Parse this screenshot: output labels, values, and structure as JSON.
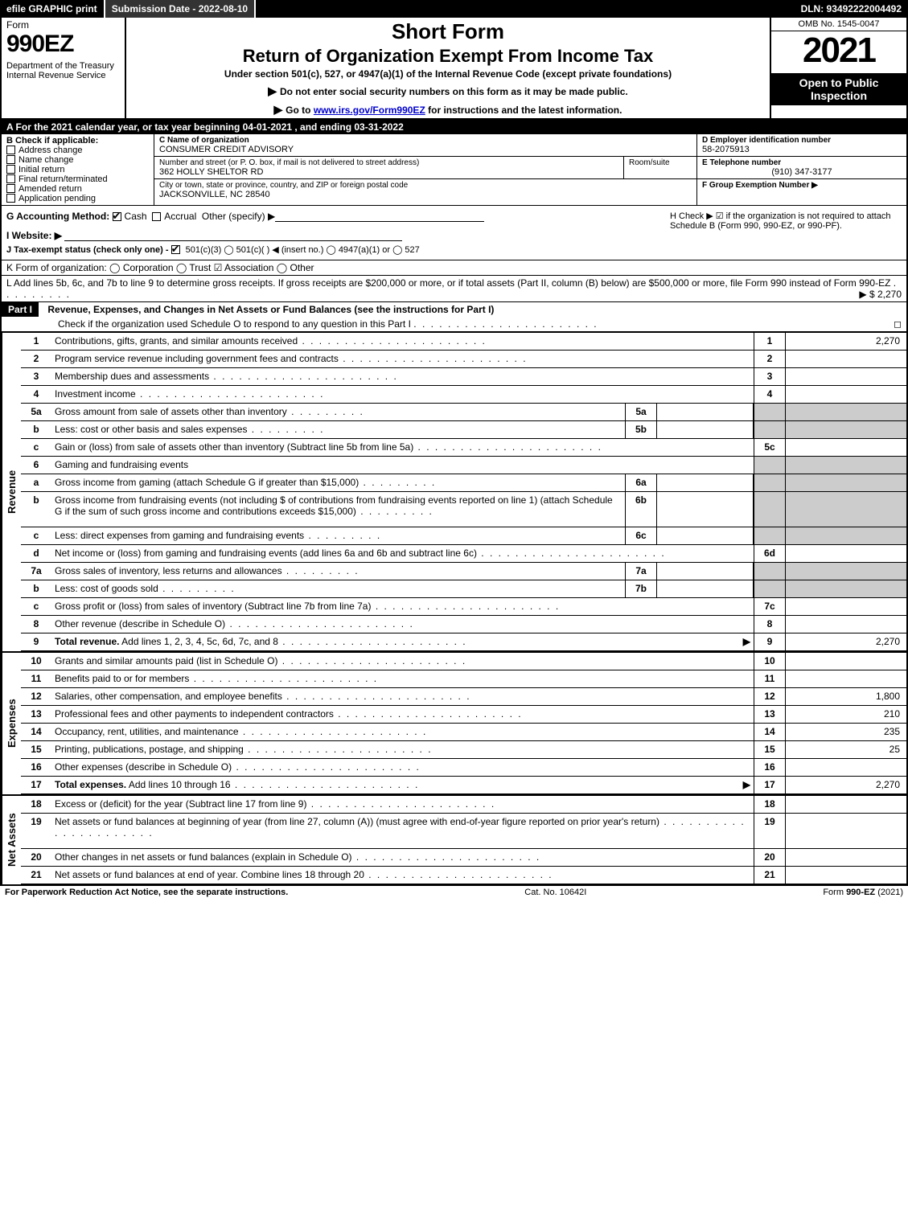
{
  "topbar": {
    "efile": "efile GRAPHIC print",
    "subdate_label": "Submission Date - 2022-08-10",
    "dln": "DLN: 93492222004492"
  },
  "header": {
    "form_word": "Form",
    "form_no": "990EZ",
    "dept": "Department of the Treasury\nInternal Revenue Service",
    "short_form": "Short Form",
    "return_line": "Return of Organization Exempt From Income Tax",
    "under_section": "Under section 501(c), 527, or 4947(a)(1) of the Internal Revenue Code (except private foundations)",
    "ssn_notice": "Do not enter social security numbers on this form as it may be made public.",
    "goto_pre": "Go to ",
    "goto_link": "www.irs.gov/Form990EZ",
    "goto_post": " for instructions and the latest information.",
    "omb": "OMB No. 1545-0047",
    "year": "2021",
    "inspect": "Open to Public Inspection"
  },
  "lineA": "A  For the 2021 calendar year, or tax year beginning 04-01-2021 , and ending 03-31-2022",
  "colB": {
    "title": "B  Check if applicable:",
    "opts": [
      "Address change",
      "Name change",
      "Initial return",
      "Final return/terminated",
      "Amended return",
      "Application pending"
    ]
  },
  "colC": {
    "name_lbl": "C Name of organization",
    "name": "CONSUMER CREDIT ADVISORY",
    "street_lbl": "Number and street (or P. O. box, if mail is not delivered to street address)",
    "street": "362 HOLLY SHELTOR RD",
    "room_lbl": "Room/suite",
    "city_lbl": "City or town, state or province, country, and ZIP or foreign postal code",
    "city": "JACKSONVILLE, NC  28540"
  },
  "colDEF": {
    "d_lbl": "D Employer identification number",
    "d_val": "58-2075913",
    "e_lbl": "E Telephone number",
    "e_val": "(910) 347-3177",
    "f_lbl": "F Group Exemption Number  ▶"
  },
  "rowG": {
    "g": "G Accounting Method:",
    "cash": "Cash",
    "accrual": "Accrual",
    "other": "Other (specify) ▶",
    "website_lbl": "I Website: ▶",
    "j": "J Tax-exempt status (check only one) - ",
    "j_opts": "501(c)(3)  ◯ 501(c)(  ) ◀ (insert no.)  ◯ 4947(a)(1) or  ◯ 527"
  },
  "rowH": {
    "h": "H  Check ▶ ☑ if the organization is not required to attach Schedule B (Form 990, 990-EZ, or 990-PF)."
  },
  "rowK": "K Form of organization:  ◯ Corporation  ◯ Trust  ☑ Association  ◯ Other",
  "rowL": {
    "text": "L Add lines 5b, 6c, and 7b to line 9 to determine gross receipts. If gross receipts are $200,000 or more, or if total assets (Part II, column (B) below) are $500,000 or more, file Form 990 instead of Form 990-EZ",
    "amount": "▶ $ 2,270"
  },
  "part1": {
    "label": "Part I",
    "title": "Revenue, Expenses, and Changes in Net Assets or Fund Balances (see the instructions for Part I)",
    "sub": "Check if the organization used Schedule O to respond to any question in this Part I",
    "sub_chk": "◻"
  },
  "revenue_label": "Revenue",
  "expenses_label": "Expenses",
  "netassets_label": "Net Assets",
  "revenue_rows": [
    {
      "no": "1",
      "desc": "Contributions, gifts, grants, and similar amounts received",
      "r": "1",
      "amt": "2,270"
    },
    {
      "no": "2",
      "desc": "Program service revenue including government fees and contracts",
      "r": "2",
      "amt": ""
    },
    {
      "no": "3",
      "desc": "Membership dues and assessments",
      "r": "3",
      "amt": ""
    },
    {
      "no": "4",
      "desc": "Investment income",
      "r": "4",
      "amt": ""
    },
    {
      "no": "5a",
      "desc": "Gross amount from sale of assets other than inventory",
      "mini": "5a",
      "miniamt": "",
      "shade": true
    },
    {
      "no": "b",
      "desc": "Less: cost or other basis and sales expenses",
      "mini": "5b",
      "miniamt": "",
      "shade": true
    },
    {
      "no": "c",
      "desc": "Gain or (loss) from sale of assets other than inventory (Subtract line 5b from line 5a)",
      "r": "5c",
      "amt": ""
    },
    {
      "no": "6",
      "desc": "Gaming and fundraising events",
      "shade": true,
      "noright": true
    },
    {
      "no": "a",
      "desc": "Gross income from gaming (attach Schedule G if greater than $15,000)",
      "mini": "6a",
      "miniamt": "",
      "shade": true
    },
    {
      "no": "b",
      "desc": "Gross income from fundraising events (not including $                    of contributions from fundraising events reported on line 1) (attach Schedule G if the sum of such gross income and contributions exceeds $15,000)",
      "mini": "6b",
      "miniamt": "",
      "shade": true,
      "tall": true
    },
    {
      "no": "c",
      "desc": "Less: direct expenses from gaming and fundraising events",
      "mini": "6c",
      "miniamt": "",
      "shade": true
    },
    {
      "no": "d",
      "desc": "Net income or (loss) from gaming and fundraising events (add lines 6a and 6b and subtract line 6c)",
      "r": "6d",
      "amt": ""
    },
    {
      "no": "7a",
      "desc": "Gross sales of inventory, less returns and allowances",
      "mini": "7a",
      "miniamt": "",
      "shade": true
    },
    {
      "no": "b",
      "desc": "Less: cost of goods sold",
      "mini": "7b",
      "miniamt": "",
      "shade": true
    },
    {
      "no": "c",
      "desc": "Gross profit or (loss) from sales of inventory (Subtract line 7b from line 7a)",
      "r": "7c",
      "amt": ""
    },
    {
      "no": "8",
      "desc": "Other revenue (describe in Schedule O)",
      "r": "8",
      "amt": ""
    },
    {
      "no": "9",
      "desc": "Total revenue. Add lines 1, 2, 3, 4, 5c, 6d, 7c, and 8",
      "r": "9",
      "amt": "2,270",
      "bold": true,
      "arrow": true
    }
  ],
  "expense_rows": [
    {
      "no": "10",
      "desc": "Grants and similar amounts paid (list in Schedule O)",
      "r": "10",
      "amt": ""
    },
    {
      "no": "11",
      "desc": "Benefits paid to or for members",
      "r": "11",
      "amt": ""
    },
    {
      "no": "12",
      "desc": "Salaries, other compensation, and employee benefits",
      "r": "12",
      "amt": "1,800"
    },
    {
      "no": "13",
      "desc": "Professional fees and other payments to independent contractors",
      "r": "13",
      "amt": "210"
    },
    {
      "no": "14",
      "desc": "Occupancy, rent, utilities, and maintenance",
      "r": "14",
      "amt": "235"
    },
    {
      "no": "15",
      "desc": "Printing, publications, postage, and shipping",
      "r": "15",
      "amt": "25"
    },
    {
      "no": "16",
      "desc": "Other expenses (describe in Schedule O)",
      "r": "16",
      "amt": ""
    },
    {
      "no": "17",
      "desc": "Total expenses. Add lines 10 through 16",
      "r": "17",
      "amt": "2,270",
      "bold": true,
      "arrow": true
    }
  ],
  "netasset_rows": [
    {
      "no": "18",
      "desc": "Excess or (deficit) for the year (Subtract line 17 from line 9)",
      "r": "18",
      "amt": ""
    },
    {
      "no": "19",
      "desc": "Net assets or fund balances at beginning of year (from line 27, column (A)) (must agree with end-of-year figure reported on prior year's return)",
      "r": "19",
      "amt": "",
      "tall": true,
      "shadetop": true
    },
    {
      "no": "20",
      "desc": "Other changes in net assets or fund balances (explain in Schedule O)",
      "r": "20",
      "amt": ""
    },
    {
      "no": "21",
      "desc": "Net assets or fund balances at end of year. Combine lines 18 through 20",
      "r": "21",
      "amt": "",
      "arrow": false
    }
  ],
  "footer": {
    "left": "For Paperwork Reduction Act Notice, see the separate instructions.",
    "mid": "Cat. No. 10642I",
    "right": "Form 990-EZ (2021)"
  }
}
